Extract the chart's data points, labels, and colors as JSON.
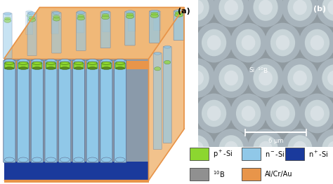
{
  "fig_width": 4.74,
  "fig_height": 2.63,
  "dpi": 100,
  "panel_a_label": "(a)",
  "panel_b_label": "(b)",
  "colors": {
    "p_si": "#8cd630",
    "n_minus_si": "#90c8e8",
    "n_plus_si": "#1a3a9c",
    "boron": "#909090",
    "al_cr_au": "#e8954a",
    "body_gray": "#8a9aaa",
    "pillar_border": "#607090",
    "pillar_gap": "#7a8a9a",
    "orange_light": "#f0b878",
    "orange_face": "#e8954a",
    "substrate_blue": "#1830a0",
    "sem_bg": "#606870",
    "sem_circle_outer": "#a8b4bc",
    "sem_circle_inner": "#c8d4d8",
    "sem_circle_center": "#d8e0e4",
    "sem_dark": "#282828"
  },
  "scale_bar_text": "6 μm",
  "sem_label_si": "Si",
  "sem_label_b": " ¹⁰B"
}
